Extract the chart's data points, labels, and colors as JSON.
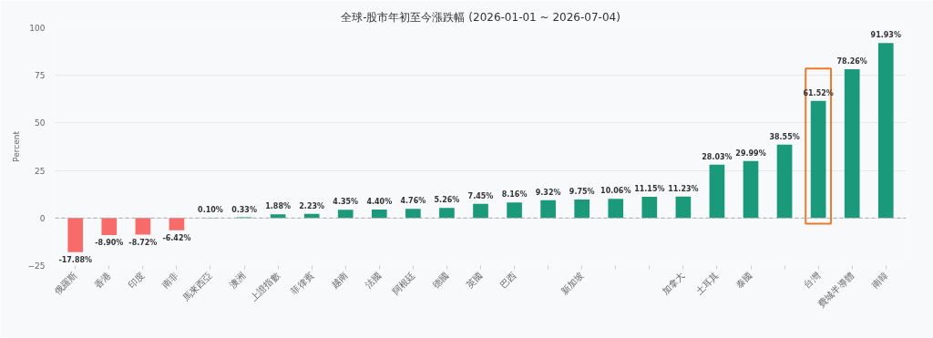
{
  "chart_data": {
    "type": "bar",
    "title": "全球-股市年初至今漲跌幅 (2026-01-01 ~ 2026-07-04)",
    "ylabel": "Percent",
    "categories": [
      "俄羅斯",
      "香港",
      "印度",
      "南非",
      "馬來西亞",
      "澳洲",
      "上證指數",
      "菲律賓",
      "越南",
      "法國",
      "阿根廷",
      "德國",
      "英國",
      "巴西",
      null,
      "新加坡",
      null,
      null,
      "加拿大",
      "土耳其",
      "泰國",
      null,
      "台灣",
      "費城半導體",
      "南韓"
    ],
    "values": [
      -17.88,
      -8.9,
      -8.72,
      -6.42,
      0.1,
      0.33,
      1.88,
      2.23,
      4.35,
      4.4,
      4.76,
      5.26,
      7.45,
      8.16,
      9.32,
      9.75,
      10.06,
      11.15,
      11.23,
      28.03,
      29.99,
      38.55,
      61.52,
      78.26,
      91.93
    ],
    "colors": [
      "#f86b6b",
      "#f86b6b",
      "#f86b6b",
      "#f86b6b",
      "#1a9a7a",
      "#1a9a7a",
      "#1a9a7a",
      "#1a9a7a",
      "#1a9a7a",
      "#1a9a7a",
      "#1a9a7a",
      "#1a9a7a",
      "#1a9a7a",
      "#1a9a7a",
      "#1a9a7a",
      "#1a9a7a",
      "#1a9a7a",
      "#1a9a7a",
      "#1a9a7a",
      "#1a9a7a",
      "#1a9a7a",
      "#1a9a7a",
      "#1a9a7a",
      "#1a9a7a",
      "#1a9a7a"
    ],
    "value_labels": [
      "-17.88%",
      "-8.90%",
      "-8.72%",
      "-6.42%",
      "0.10%",
      "0.33%",
      "1.88%",
      "2.23%",
      "4.35%",
      "4.40%",
      "4.76%",
      "5.26%",
      "7.45%",
      "8.16%",
      "9.32%",
      "9.75%",
      "10.06%",
      "11.15%",
      "11.23%",
      "28.03%",
      "29.99%",
      "38.55%",
      "61.52%",
      "78.26%",
      "91.93%"
    ],
    "ylim": [
      -25,
      100
    ],
    "yticks": [
      -25,
      0,
      25,
      50,
      75,
      100
    ],
    "grid": "y",
    "ref_lines": [
      {
        "axis": "y",
        "value": 0,
        "color": "#aaaaaa",
        "line_style": "dashed"
      }
    ]
  }
}
